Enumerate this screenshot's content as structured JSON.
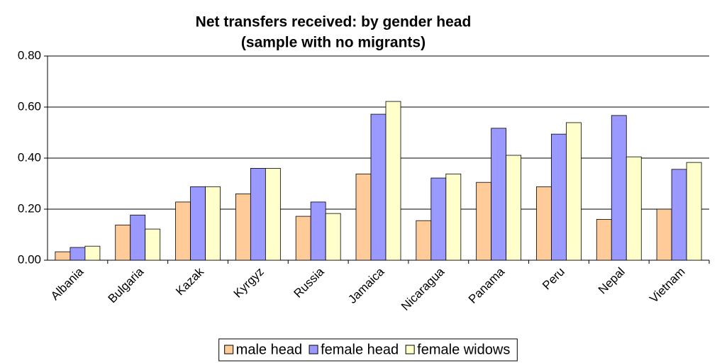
{
  "chart_data": {
    "type": "bar",
    "title": "Net transfers received: by gender head",
    "subtitle": "(sample with no migrants)",
    "categories": [
      "Albania",
      "Bulgaria",
      "Kazak",
      "Kyrgyz",
      "Russia",
      "Jamaica",
      "Nicaragua",
      "Panama",
      "Peru",
      "Nepal",
      "Vietnam"
    ],
    "series": [
      {
        "name": "male head",
        "color": "#ffcc99",
        "values": [
          0.033,
          0.138,
          0.228,
          0.26,
          0.172,
          0.338,
          0.155,
          0.305,
          0.288,
          0.16,
          0.2
        ]
      },
      {
        "name": "female head",
        "color": "#9999ff",
        "values": [
          0.05,
          0.177,
          0.288,
          0.36,
          0.228,
          0.572,
          0.322,
          0.517,
          0.494,
          0.567,
          0.356
        ]
      },
      {
        "name": "female widows",
        "color": "#ffffcc",
        "values": [
          0.055,
          0.122,
          0.288,
          0.36,
          0.183,
          0.622,
          0.338,
          0.411,
          0.539,
          0.405,
          0.383
        ]
      }
    ],
    "ylim": [
      0,
      0.8
    ],
    "yticks": [
      {
        "value": 0,
        "label": "0.00"
      },
      {
        "value": 0.2,
        "label": "0.20"
      },
      {
        "value": 0.4,
        "label": "0.40"
      },
      {
        "value": 0.6,
        "label": "0.60"
      },
      {
        "value": 0.8,
        "label": "0.80"
      }
    ],
    "grid": true,
    "legend": "bottom"
  }
}
